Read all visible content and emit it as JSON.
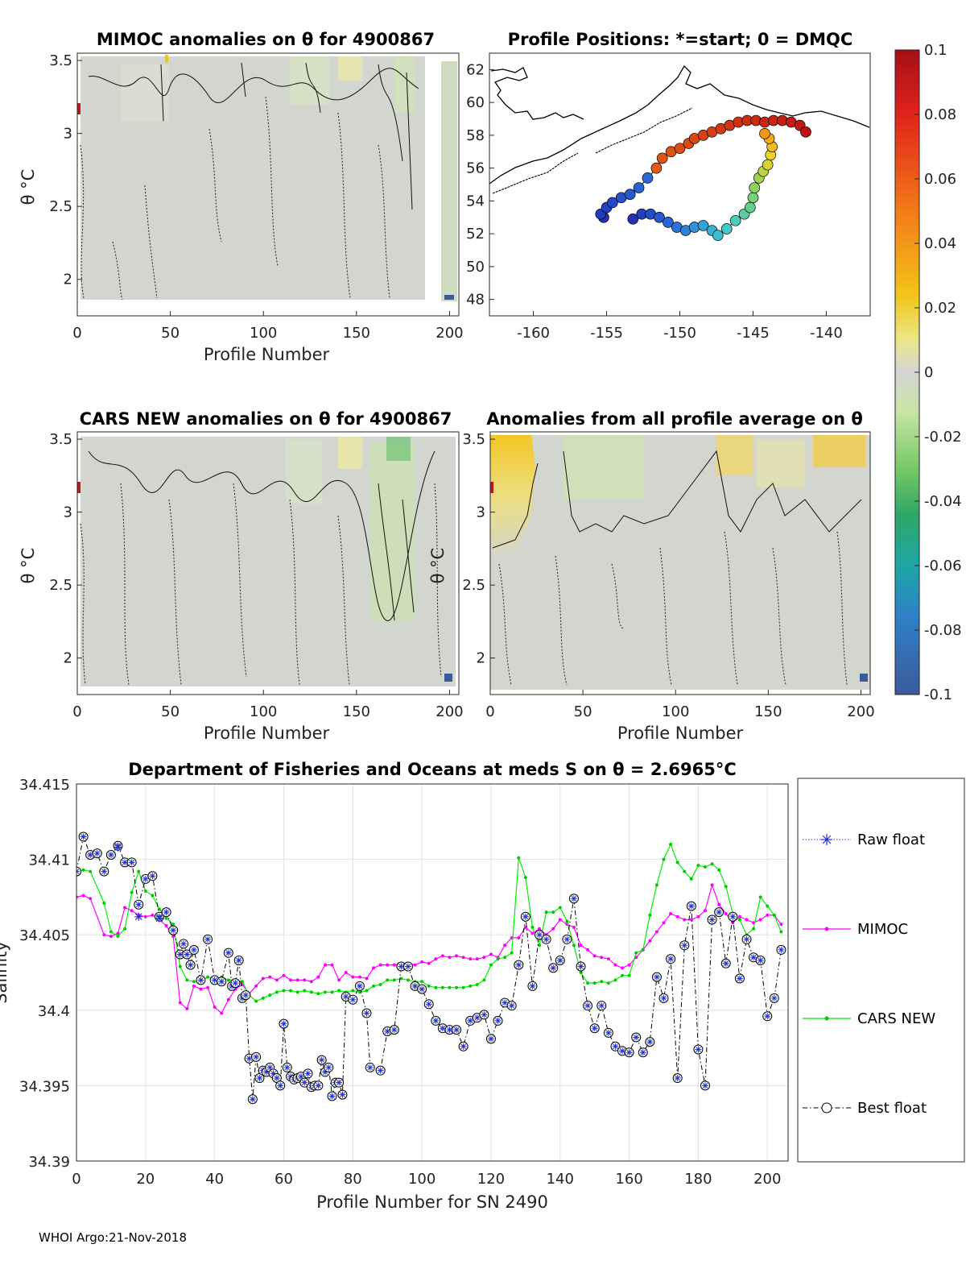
{
  "footer": "WHOI Argo:21-Nov-2018",
  "colorbar": {
    "ticks": [
      "0.1",
      "0.08",
      "0.06",
      "0.04",
      "0.02",
      "0",
      "-0.02",
      "-0.04",
      "-0.06",
      "-0.08",
      "-0.1"
    ]
  },
  "chart_data": [
    {
      "type": "heatmap",
      "title": "MIMOC anomalies on θ  for 4900867",
      "xlabel": "Profile Number",
      "ylabel": "θ °C",
      "xlim": [
        0,
        205
      ],
      "ylim": [
        1.75,
        3.55
      ],
      "xticks": [
        "0",
        "50",
        "100",
        "150",
        "200"
      ],
      "yticks": [
        "2",
        "2.5",
        "3",
        "3.5"
      ]
    },
    {
      "type": "scatter",
      "title": "Profile Positions: *=start; 0 = DMQC",
      "xlim": [
        -163,
        -137
      ],
      "ylim": [
        47,
        63
      ],
      "xticks": [
        "-160",
        "-155",
        "-150",
        "-145",
        "-140"
      ],
      "yticks": [
        "48",
        "50",
        "52",
        "54",
        "56",
        "58",
        "60",
        "62"
      ]
    },
    {
      "type": "heatmap",
      "title": "CARS NEW anomalies on θ for 4900867",
      "xlabel": "Profile Number",
      "ylabel": "θ °C",
      "xlim": [
        0,
        205
      ],
      "ylim": [
        1.75,
        3.55
      ],
      "xticks": [
        "0",
        "50",
        "100",
        "150",
        "200"
      ],
      "yticks": [
        "2",
        "2.5",
        "3",
        "3.5"
      ]
    },
    {
      "type": "heatmap",
      "title": "Anomalies from all profile average on θ",
      "xlabel": "Profile Number",
      "ylabel": "θ °C",
      "xlim": [
        0,
        205
      ],
      "ylim": [
        1.75,
        3.55
      ],
      "xticks": [
        "0",
        "50",
        "100",
        "150",
        "200"
      ],
      "yticks": [
        "2",
        "2.5",
        "3",
        "3.5"
      ]
    },
    {
      "type": "line",
      "title": "Department of Fisheries and Oceans at meds S on θ = 2.6965°C",
      "xlabel": "Profile Number for SN 2490",
      "ylabel": "Salinity",
      "xlim": [
        0,
        206
      ],
      "ylim": [
        34.39,
        34.415
      ],
      "xticks": [
        "0",
        "20",
        "40",
        "60",
        "80",
        "100",
        "120",
        "140",
        "160",
        "180",
        "200"
      ],
      "yticks": [
        "34.39",
        "34.395",
        "34.4",
        "34.405",
        "34.41",
        "34.415"
      ],
      "legend": [
        "Raw float",
        "MIMOC",
        "CARS NEW",
        "Best float"
      ],
      "series": [
        {
          "name": "Best float",
          "x": [
            0,
            2,
            4,
            6,
            8,
            10,
            12,
            14,
            16,
            18,
            20,
            22,
            24,
            26,
            28,
            30,
            31,
            32,
            33,
            34,
            36,
            38,
            40,
            42,
            44,
            45,
            46,
            47,
            48,
            49,
            50,
            51,
            52,
            53,
            54,
            55,
            56,
            57,
            58,
            59,
            60,
            61,
            62,
            63,
            64,
            65,
            66,
            67,
            68,
            69,
            70,
            71,
            72,
            73,
            74,
            75,
            76,
            77,
            78,
            80,
            82,
            84,
            85,
            88,
            90,
            92,
            94,
            96,
            98,
            100,
            102,
            104,
            106,
            108,
            110,
            112,
            114,
            116,
            118,
            120,
            122,
            124,
            126,
            128,
            130,
            132,
            134,
            136,
            138,
            140,
            142,
            144,
            146,
            148,
            150,
            152,
            154,
            156,
            158,
            160,
            162,
            164,
            166,
            168,
            170,
            172,
            174,
            176,
            178,
            180,
            182,
            184,
            186,
            188,
            190,
            192,
            194,
            196,
            198,
            200,
            202,
            204
          ],
          "values": [
            34.4092,
            34.4115,
            34.4103,
            34.4104,
            34.4092,
            34.4103,
            34.4109,
            34.4098,
            34.4098,
            34.407,
            34.4087,
            34.4089,
            34.4062,
            34.4065,
            34.4053,
            34.4037,
            34.4044,
            34.4037,
            34.403,
            34.404,
            34.402,
            34.4047,
            34.402,
            34.4019,
            34.4038,
            34.4016,
            34.4018,
            34.4033,
            34.4008,
            34.401,
            34.3968,
            34.3941,
            34.3969,
            34.3955,
            34.396,
            34.3959,
            34.3962,
            34.3958,
            34.3955,
            34.395,
            34.3991,
            34.3962,
            34.3956,
            34.3954,
            34.3955,
            34.3956,
            34.3952,
            34.3958,
            34.3949,
            34.395,
            34.395,
            34.3967,
            34.3959,
            34.3962,
            34.3943,
            34.3952,
            34.3952,
            34.3944,
            34.4009,
            34.4007,
            34.4016,
            34.3998,
            34.3962,
            34.396,
            34.3986,
            34.3987,
            34.4029,
            34.4029,
            34.4016,
            34.4014,
            34.4004,
            34.3993,
            34.3988,
            34.3987,
            34.3987,
            34.3976,
            34.3993,
            34.3995,
            34.3997,
            34.3981,
            34.3993,
            34.4005,
            34.4003,
            34.403,
            34.4062,
            34.4016,
            34.405,
            34.4047,
            34.4028,
            34.4033,
            34.4047,
            34.4074,
            34.4029,
            34.4003,
            34.3988,
            34.4003,
            34.3985,
            34.3976,
            34.3973,
            34.3972,
            34.3982,
            34.3972,
            34.3979,
            34.4022,
            34.4008,
            34.4034,
            34.3955,
            34.4043,
            34.4069,
            34.3974,
            34.395,
            34.406,
            34.4065,
            34.4031,
            34.4062,
            34.4021,
            34.4047,
            34.4035,
            34.4033,
            34.3996,
            34.4008,
            34.404
          ]
        },
        {
          "name": "Raw float",
          "x": [
            12,
            18,
            24
          ],
          "values": [
            34.4108,
            34.4062,
            34.4061
          ]
        },
        {
          "name": "MIMOC",
          "x": [
            0,
            2,
            4,
            8,
            10,
            12,
            14,
            16,
            18,
            20,
            22,
            24,
            26,
            28,
            30,
            32,
            34,
            36,
            38,
            40,
            42,
            44,
            46,
            48,
            50,
            52,
            54,
            56,
            58,
            60,
            62,
            64,
            66,
            68,
            70,
            72,
            74,
            76,
            78,
            80,
            82,
            84,
            86,
            88,
            90,
            92,
            94,
            96,
            98,
            100,
            102,
            104,
            106,
            108,
            110,
            112,
            114,
            116,
            118,
            120,
            122,
            124,
            126,
            128,
            130,
            132,
            134,
            136,
            138,
            140,
            142,
            144,
            146,
            148,
            150,
            152,
            154,
            156,
            158,
            160,
            162,
            164,
            166,
            168,
            170,
            172,
            174,
            176,
            178,
            180,
            182,
            184,
            186,
            188,
            190,
            192,
            194,
            196,
            198,
            200,
            202,
            204
          ],
          "values": [
            34.4075,
            34.4076,
            34.4074,
            34.405,
            34.4049,
            34.4051,
            34.4068,
            34.4066,
            34.4063,
            34.4062,
            34.4063,
            34.406,
            34.4056,
            34.4049,
            34.4005,
            34.4001,
            34.4016,
            34.4014,
            34.4015,
            34.4002,
            34.3998,
            34.4007,
            34.4014,
            34.4017,
            34.4011,
            34.4016,
            34.4021,
            34.4022,
            34.402,
            34.4023,
            34.402,
            34.402,
            34.402,
            34.4019,
            34.4022,
            34.403,
            34.403,
            34.402,
            34.4025,
            34.4022,
            34.4022,
            34.4021,
            34.4028,
            34.403,
            34.403,
            34.403,
            34.4031,
            34.4031,
            34.403,
            34.4032,
            34.4031,
            34.4034,
            34.4036,
            34.4035,
            34.4036,
            34.4035,
            34.4034,
            34.4034,
            34.4035,
            34.4037,
            34.4035,
            34.4043,
            34.4048,
            34.4048,
            34.4055,
            34.4051,
            34.4054,
            34.405,
            34.4054,
            34.406,
            34.4057,
            34.4055,
            34.4043,
            34.404,
            34.4036,
            34.4035,
            34.4034,
            34.403,
            34.4028,
            34.403,
            34.4035,
            34.404,
            34.4046,
            34.4052,
            34.4058,
            34.4064,
            34.4062,
            34.406,
            34.406,
            34.4062,
            34.4066,
            34.4083,
            34.407,
            34.4064,
            34.4058,
            34.4062,
            34.406,
            34.4058,
            34.406,
            34.4063,
            34.4063,
            34.4057
          ]
        },
        {
          "name": "CARS NEW",
          "x": [
            0,
            2,
            4,
            8,
            10,
            12,
            14,
            16,
            18,
            20,
            22,
            24,
            26,
            28,
            30,
            32,
            34,
            36,
            38,
            40,
            42,
            44,
            46,
            48,
            50,
            52,
            54,
            56,
            58,
            60,
            62,
            64,
            66,
            68,
            70,
            72,
            74,
            76,
            78,
            80,
            82,
            84,
            86,
            88,
            90,
            92,
            94,
            96,
            98,
            100,
            102,
            104,
            106,
            108,
            110,
            112,
            114,
            116,
            118,
            120,
            122,
            124,
            126,
            128,
            130,
            132,
            134,
            136,
            138,
            140,
            142,
            144,
            146,
            148,
            150,
            152,
            154,
            156,
            158,
            160,
            162,
            164,
            166,
            168,
            170,
            172,
            174,
            176,
            178,
            180,
            182,
            184,
            186,
            188,
            190,
            192,
            194,
            196,
            198,
            200,
            202,
            204
          ],
          "values": [
            34.4091,
            34.4093,
            34.4092,
            34.4071,
            34.4052,
            34.4049,
            34.4054,
            34.4078,
            34.4092,
            34.4079,
            34.4076,
            34.4067,
            34.4061,
            34.4057,
            34.4029,
            34.402,
            34.4019,
            34.4019,
            34.4022,
            34.402,
            34.4022,
            34.402,
            34.402,
            34.4019,
            34.401,
            34.4006,
            34.4008,
            34.401,
            34.4012,
            34.4013,
            34.4013,
            34.4012,
            34.4013,
            34.4012,
            34.4011,
            34.4012,
            34.4012,
            34.4013,
            34.4012,
            34.4013,
            34.4012,
            34.4013,
            34.4016,
            34.4017,
            34.402,
            34.402,
            34.4021,
            34.402,
            34.4019,
            34.4019,
            34.4016,
            34.4015,
            34.4015,
            34.4015,
            34.4015,
            34.4015,
            34.4016,
            34.4017,
            34.402,
            34.403,
            34.4034,
            34.4035,
            34.4038,
            34.4101,
            34.4088,
            34.4055,
            34.4043,
            34.4065,
            34.4065,
            34.4068,
            34.4059,
            34.4043,
            34.4025,
            34.4018,
            34.4018,
            34.4019,
            34.4018,
            34.402,
            34.4023,
            34.4023,
            34.4038,
            34.404,
            34.4063,
            34.4083,
            34.41,
            34.411,
            34.4098,
            34.4092,
            34.4087,
            34.4096,
            34.4095,
            34.4097,
            34.4093,
            34.4082,
            34.4064,
            34.406,
            34.405,
            34.4054,
            34.4075,
            34.4069,
            34.4063,
            34.4052
          ]
        }
      ]
    }
  ]
}
